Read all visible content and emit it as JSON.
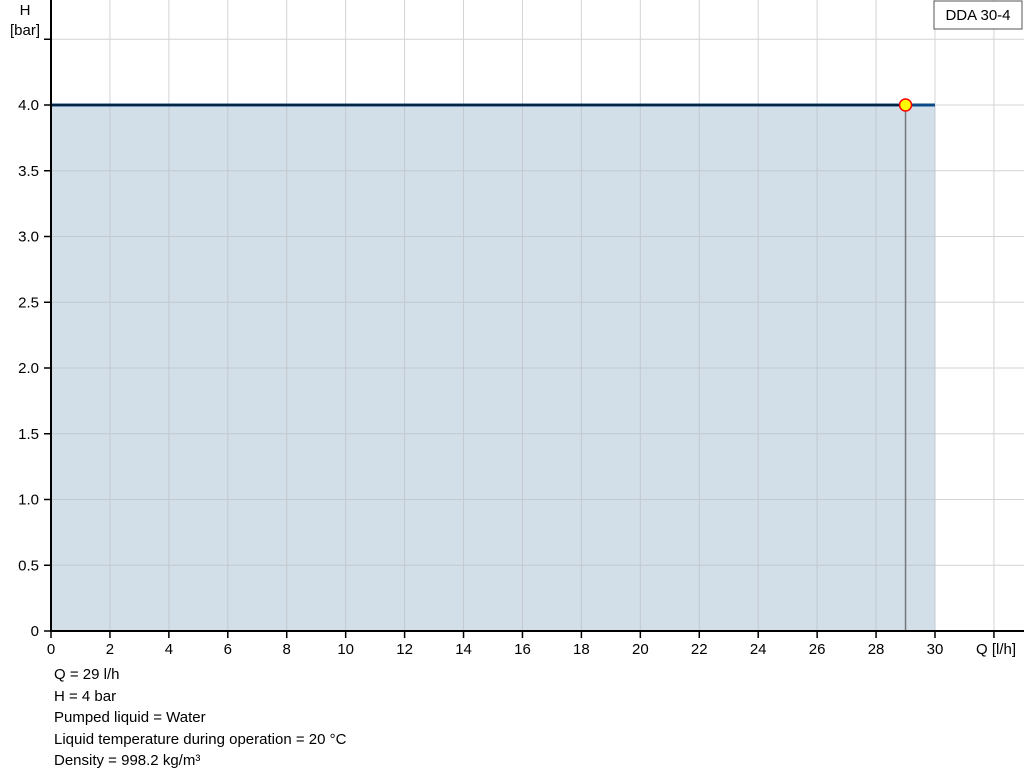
{
  "chart_data": {
    "type": "area",
    "ylabel_line1": "H",
    "ylabel_line2": "[bar]",
    "xlabel": "Q [l/h]",
    "xlim": [
      0,
      33
    ],
    "ylim": [
      0,
      4.78
    ],
    "x_ticks": [
      0,
      2,
      4,
      6,
      8,
      10,
      12,
      14,
      16,
      18,
      20,
      22,
      24,
      26,
      28,
      30,
      32
    ],
    "x_tick_labels": [
      "0",
      "2",
      "4",
      "6",
      "8",
      "10",
      "12",
      "14",
      "16",
      "18",
      "20",
      "22",
      "24",
      "26",
      "28",
      "30",
      ""
    ],
    "y_ticks": [
      0,
      0.5,
      1.0,
      1.5,
      2.0,
      2.5,
      3.0,
      3.5,
      4.0,
      4.5
    ],
    "y_tick_labels": [
      "0",
      "0.5",
      "1.0",
      "1.5",
      "2.0",
      "2.5",
      "3.0",
      "3.5",
      "4.0",
      ""
    ],
    "grid": true,
    "series": [
      {
        "x": [
          0,
          30
        ],
        "y": [
          4.0,
          4.0
        ],
        "color": "#0b4a86",
        "fill": "#d0dce7"
      }
    ],
    "operating_point": {
      "x": 29,
      "y": 4.0,
      "fill": "#ffff00",
      "stroke": "#ff0000"
    },
    "legend": {
      "label": "DDA 30-4",
      "placement": "top-right"
    }
  },
  "info": {
    "lines": [
      "Q = 29 l/h",
      "H = 4 bar",
      "Pumped liquid = Water",
      "Liquid temperature during operation = 20 °C",
      "Density = 998.2 kg/m³"
    ]
  }
}
